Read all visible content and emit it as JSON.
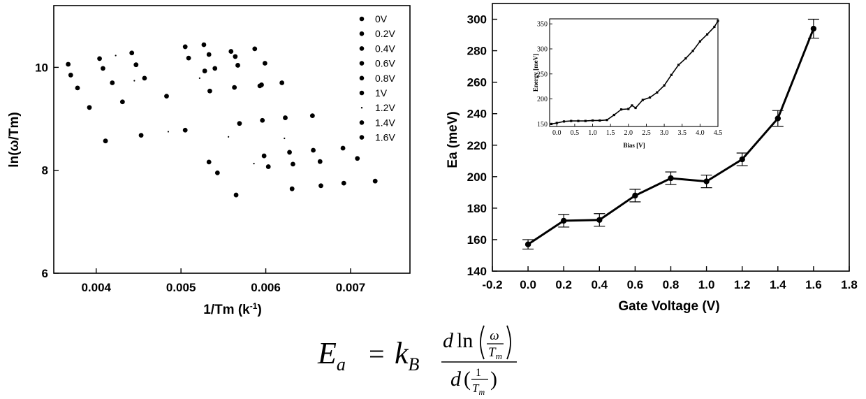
{
  "chart_data": [
    {
      "type": "scatter",
      "xlabel": "1/Tm (k",
      "xlabel_sup": "-1",
      "xlabel_end": ")",
      "ylabel": "ln(ω/Tm)",
      "xlim": [
        0.0035,
        0.0077
      ],
      "ylim": [
        6,
        11.2
      ],
      "x_ticks": [
        0.004,
        0.005,
        0.006,
        0.007
      ],
      "x_tick_labels": [
        "0.004",
        "0.005",
        "0.006",
        "0.007"
      ],
      "y_ticks": [
        6,
        8,
        10
      ],
      "y_tick_labels": [
        "6",
        "8",
        "10"
      ],
      "legend_position": "top-right",
      "series": [
        {
          "name": "0V",
          "marker": "dot",
          "x": [
            0.00367,
            0.00404,
            0.00442,
            0.00505,
            0.00527,
            0.00559,
            0.00587
          ],
          "y": [
            10.06,
            10.17,
            10.28,
            10.4,
            10.44,
            10.31,
            10.36
          ]
        },
        {
          "name": "0.2V",
          "marker": "dot",
          "x": [
            0.0037,
            0.00408,
            0.00447,
            0.00509,
            0.00533,
            0.00564,
            0.00599
          ],
          "y": [
            9.85,
            9.98,
            10.05,
            10.18,
            10.25,
            10.21,
            10.08
          ]
        },
        {
          "name": "0.4V",
          "marker": "dot",
          "x": [
            0.00378,
            0.00419,
            0.00457,
            0.00528,
            0.0054,
            0.00567,
            0.00593
          ],
          "y": [
            9.6,
            9.7,
            9.79,
            9.93,
            9.98,
            10.04,
            9.64
          ]
        },
        {
          "name": "0.6V",
          "marker": "dot",
          "x": [
            0.00392,
            0.00431,
            0.00483,
            0.00534,
            0.00563,
            0.00595,
            0.00619
          ],
          "y": [
            9.22,
            9.33,
            9.44,
            9.54,
            9.61,
            9.66,
            9.7
          ]
        },
        {
          "name": "0.8V",
          "marker": "dot",
          "x": [
            0.00411,
            0.00453,
            0.00505,
            0.00569,
            0.00596,
            0.00623,
            0.00655
          ],
          "y": [
            8.57,
            8.68,
            8.78,
            8.91,
            8.97,
            9.02,
            9.06
          ]
        },
        {
          "name": "1V",
          "marker": "dot",
          "x": [
            0.00533,
            0.00598,
            0.00628,
            0.00656,
            0.00691,
            0.00708,
            0.00729
          ],
          "y": [
            8.16,
            8.28,
            8.35,
            8.39,
            8.43,
            8.23,
            7.79
          ]
        },
        {
          "name": "1.2V",
          "marker": "small",
          "x": [
            0.00423,
            0.00445,
            0.00485,
            0.00522,
            0.00556,
            0.00586,
            0.00622
          ],
          "y": [
            10.23,
            9.74,
            8.75,
            9.79,
            8.65,
            8.13,
            8.62
          ]
        },
        {
          "name": "1.4V",
          "marker": "dot",
          "x": [
            0.00543,
            0.00603,
            0.00632,
            0.00664,
            0.00692
          ],
          "y": [
            7.95,
            8.07,
            8.12,
            8.17,
            7.75
          ]
        },
        {
          "name": "1.6V",
          "marker": "dot",
          "x": [
            0.00565,
            0.00631,
            0.00665
          ],
          "y": [
            7.52,
            7.64,
            7.7
          ]
        }
      ]
    },
    {
      "type": "line",
      "xlabel": "Gate Voltage (V)",
      "ylabel": "Ea (meV)",
      "xlim": [
        -0.2,
        1.8
      ],
      "ylim": [
        140,
        310
      ],
      "x_ticks": [
        -0.2,
        0.0,
        0.2,
        0.4,
        0.6,
        0.8,
        1.0,
        1.2,
        1.4,
        1.6,
        1.8
      ],
      "x_tick_labels": [
        "-0.2",
        "0.0",
        "0.2",
        "0.4",
        "0.6",
        "0.8",
        "1.0",
        "1.2",
        "1.4",
        "1.6",
        "1.8"
      ],
      "y_ticks": [
        140,
        160,
        180,
        200,
        220,
        240,
        260,
        280,
        300
      ],
      "y_tick_labels": [
        "140",
        "160",
        "180",
        "200",
        "220",
        "240",
        "260",
        "280",
        "300"
      ],
      "x": [
        0.0,
        0.2,
        0.4,
        0.6,
        0.8,
        1.0,
        1.2,
        1.4,
        1.6
      ],
      "y": [
        157,
        172,
        172.5,
        188,
        199,
        197,
        211,
        237,
        294
      ],
      "error": [
        3,
        4,
        4,
        4,
        4,
        4,
        4,
        5,
        6
      ],
      "inset": {
        "type": "line",
        "xlabel": "Bias [V]",
        "ylabel": "Energy [meV]",
        "xlim": [
          -0.2,
          4.5
        ],
        "ylim": [
          145,
          360
        ],
        "x_ticks": [
          0.0,
          0.5,
          1.0,
          1.5,
          2.0,
          2.5,
          3.0,
          3.5,
          4.0,
          4.5
        ],
        "x_tick_labels": [
          "0.0",
          "0.5",
          "1.0",
          "1.5",
          "2.0",
          "2.5",
          "3.0",
          "3.5",
          "4.0",
          "4.5"
        ],
        "y_ticks": [
          150,
          200,
          250,
          300,
          350
        ],
        "y_tick_labels": [
          "150",
          "200",
          "250",
          "300",
          "350"
        ],
        "x": [
          -0.15,
          0.0,
          0.2,
          0.4,
          0.6,
          0.8,
          1.0,
          1.2,
          1.4,
          1.6,
          1.8,
          2.0,
          2.1,
          2.2,
          2.4,
          2.6,
          2.8,
          3.0,
          3.2,
          3.4,
          3.6,
          3.8,
          4.0,
          4.2,
          4.4,
          4.5
        ],
        "y": [
          150,
          152,
          155,
          156,
          156,
          156,
          157,
          157,
          158,
          168,
          179,
          180,
          187,
          182,
          198,
          203,
          213,
          227,
          248,
          268,
          281,
          296,
          315,
          329,
          344,
          356
        ]
      }
    }
  ],
  "equation": {
    "lhs": "E",
    "lhs_sub": "a",
    "equals": "=",
    "k": "k",
    "k_sub": "B",
    "num_d": "d",
    "num_ln": "ln",
    "num_omega": "ω",
    "num_T": "T",
    "num_T_sub": "m",
    "den_d": "d",
    "den_one": "1",
    "den_T": "T",
    "den_T_sub": "m"
  }
}
